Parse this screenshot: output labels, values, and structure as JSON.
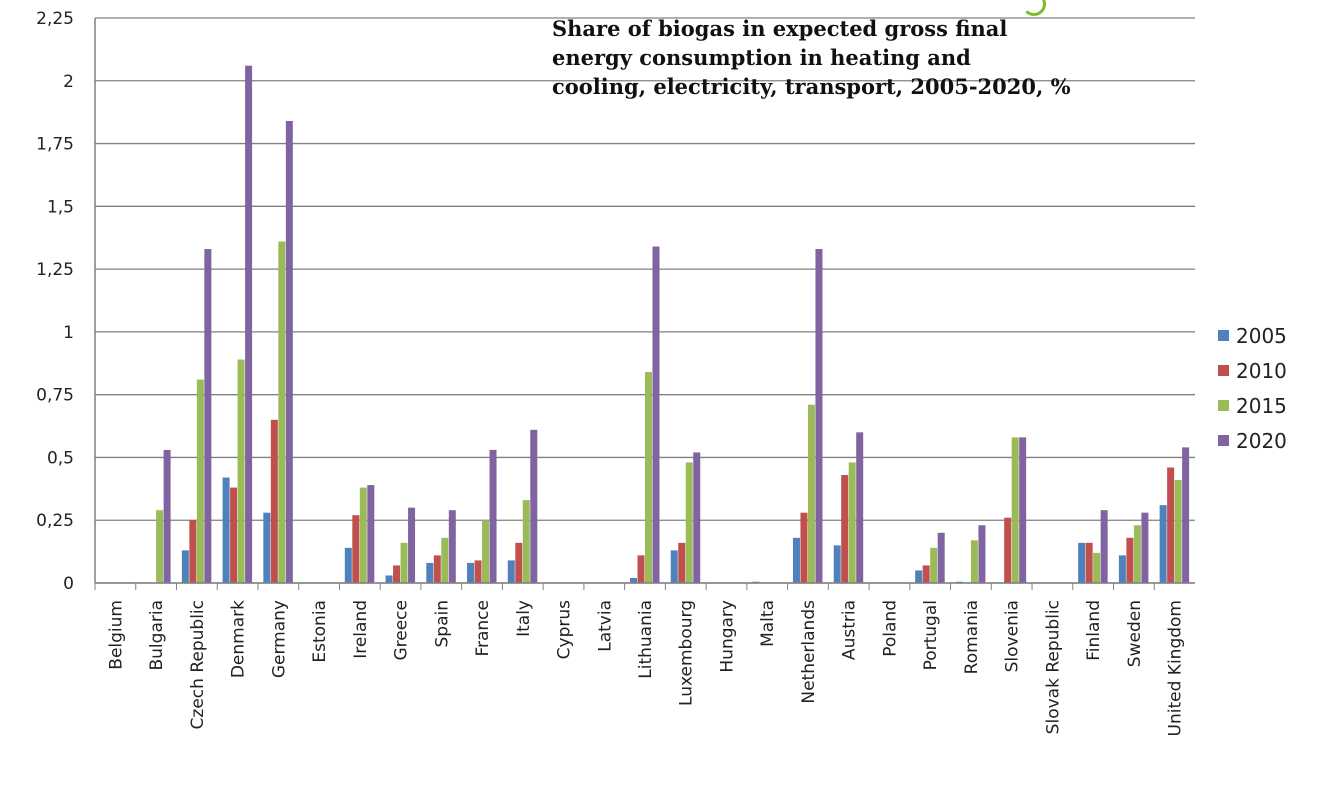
{
  "chart_data": {
    "type": "bar",
    "title": "Share of biogas in expected gross final energy consumption in heating and cooling, electricity, transport, 2005-2020, %",
    "ylim": [
      0,
      2.25
    ],
    "yticks": [
      "0",
      "0,25",
      "0,5",
      "0,75",
      "1",
      "1,25",
      "1,5",
      "1,75",
      "2",
      "2,25"
    ],
    "grid": true,
    "legend_position": "right",
    "categories": [
      "Belgium",
      "Bulgaria",
      "Czech Republic",
      "Denmark",
      "Germany",
      "Estonia",
      "Ireland",
      "Greece",
      "Spain",
      "France",
      "Italy",
      "Cyprus",
      "Latvia",
      "Lithuania",
      "Luxembourg",
      "Hungary",
      "Malta",
      "Netherlands",
      "Austria",
      "Poland",
      "Portugal",
      "Romania",
      "Slovenia",
      "Slovak Republic",
      "Finland",
      "Sweden",
      "United Kingdom"
    ],
    "series": [
      {
        "name": "2005",
        "color": "#4f81bd",
        "values": [
          0,
          0,
          0.13,
          0.42,
          0.28,
          0,
          0.14,
          0.03,
          0.08,
          0.08,
          0.09,
          0,
          0,
          0.02,
          0.13,
          0,
          0.005,
          0.18,
          0.15,
          0,
          0.05,
          0.005,
          0,
          0,
          0.16,
          0.11,
          0.31
        ]
      },
      {
        "name": "2010",
        "color": "#c0504d",
        "values": [
          0,
          0,
          0.25,
          0.38,
          0.65,
          0,
          0.27,
          0.07,
          0.11,
          0.09,
          0.16,
          0,
          0,
          0.11,
          0.16,
          0,
          0,
          0.28,
          0.43,
          0,
          0.07,
          0,
          0.26,
          0,
          0.16,
          0.18,
          0.46
        ]
      },
      {
        "name": "2015",
        "color": "#9bbb59",
        "values": [
          0,
          0.29,
          0.81,
          0.89,
          1.36,
          0,
          0.38,
          0.16,
          0.18,
          0.25,
          0.33,
          0,
          0,
          0.84,
          0.48,
          0,
          0,
          0.71,
          0.48,
          0,
          0.14,
          0.17,
          0.58,
          0,
          0.12,
          0.23,
          0.41
        ]
      },
      {
        "name": "2020",
        "color": "#8064a2",
        "values": [
          0,
          0.53,
          1.33,
          2.06,
          1.84,
          0,
          0.39,
          0.3,
          0.29,
          0.53,
          0.61,
          0,
          0,
          1.34,
          0.52,
          0,
          0,
          1.33,
          0.6,
          0,
          0.2,
          0.23,
          0.58,
          0,
          0.29,
          0.28,
          0.54
        ]
      }
    ]
  },
  "logo": {
    "icon": "swirl-logo-icon",
    "color": "#7dbb2d"
  }
}
